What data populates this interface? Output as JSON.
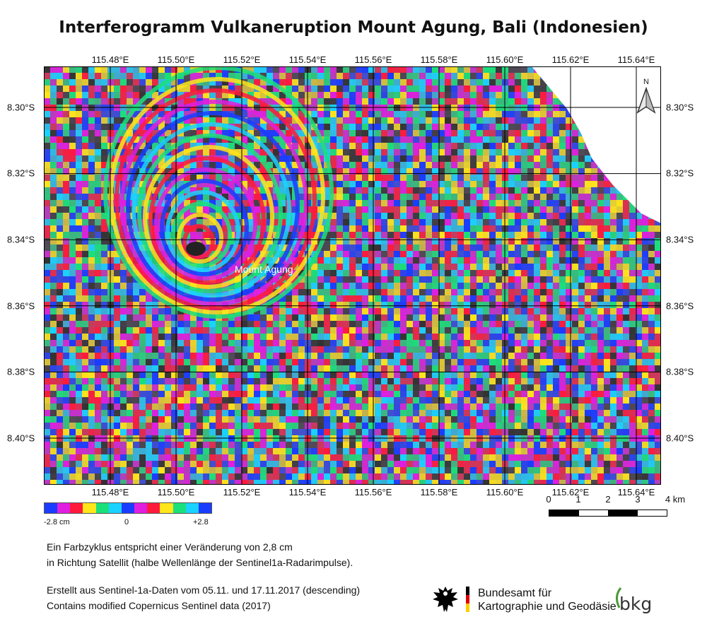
{
  "title": "Interferogramm Vulkaneruption Mount Agung, Bali (Indonesien)",
  "map": {
    "lon_labels": [
      "115.48°E",
      "115.50°E",
      "115.52°E",
      "115.54°E",
      "115.56°E",
      "115.58°E",
      "115.60°E",
      "115.62°E",
      "115.64°E"
    ],
    "lat_labels": [
      "8.30°S",
      "8.32°S",
      "8.34°S",
      "8.36°S",
      "8.38°S",
      "8.40°S"
    ],
    "volcano_label": "Mount Agung",
    "north_label": "N"
  },
  "colorbar": {
    "colors": [
      "#1a3cff",
      "#e01ee0",
      "#ff1a3c",
      "#ffe61a",
      "#1ae07a",
      "#1ad2ff",
      "#1a3cff",
      "#e01ee0",
      "#ff1a3c",
      "#ffe61a",
      "#1ae07a",
      "#1ad2ff",
      "#1a3cff"
    ],
    "min_label": "-2.8 cm",
    "mid_label": "0",
    "max_label": "+2.8"
  },
  "scalebar": {
    "labels": [
      "0",
      "1",
      "2",
      "3",
      "4 km"
    ]
  },
  "notes": {
    "line1": "Ein Farbzyklus entspricht einer Veränderung von 2,8 cm",
    "line2": "in Richtung Satellit (halbe Wellenlänge der Sentinel1a-Radarimpulse).",
    "line3": "Erstellt aus Sentinel-1a-Daten vom 05.11. und 17.11.2017 (descending)",
    "line4": "Contains modified Copernicus Sentinel data (2017)"
  },
  "logo": {
    "line1": "Bundesamt für",
    "line2": "Kartographie und Geodäsie",
    "abbr": "bkg",
    "flag_colors": [
      "#000000",
      "#dd0000",
      "#ffcc00"
    ]
  }
}
